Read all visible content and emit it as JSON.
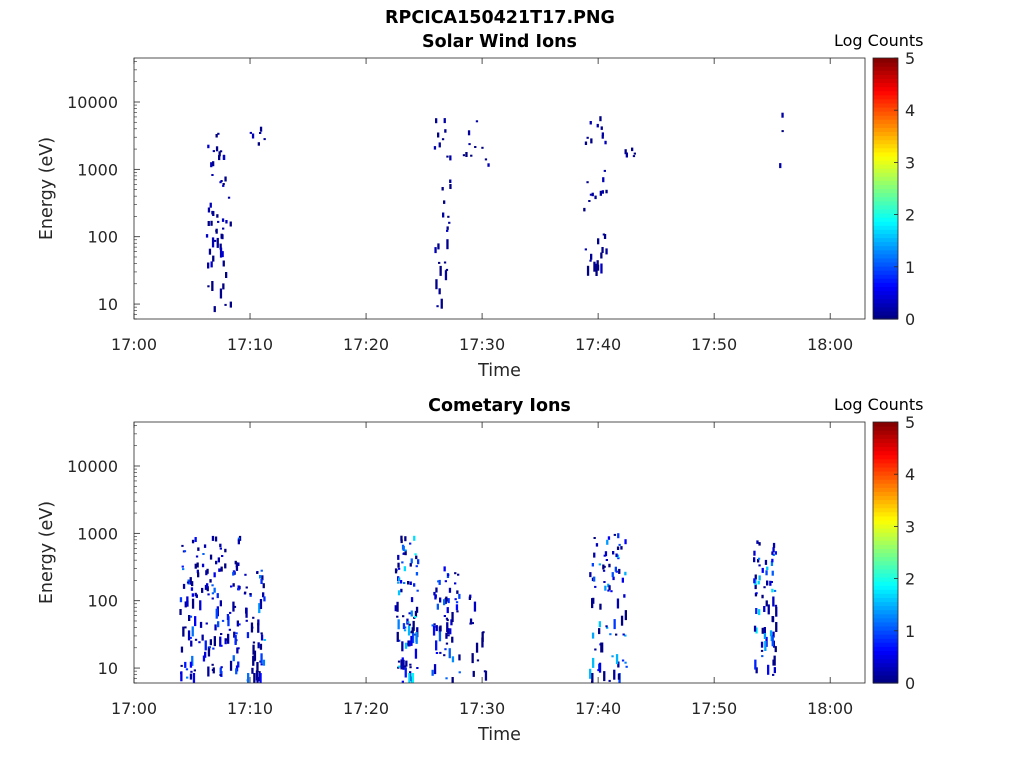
{
  "figure": {
    "title": "RPCICA150421T17.PNG"
  },
  "chart_data": [
    {
      "type": "heatmap",
      "title": "Solar Wind Ions",
      "xlabel": "Time",
      "ylabel": "Energy (eV)",
      "x_ticks": [
        "17:00",
        "17:10",
        "17:20",
        "17:30",
        "17:40",
        "17:50",
        "18:00"
      ],
      "x_range_minutes": [
        0,
        63
      ],
      "y_ticks": [
        "10",
        "100",
        "1000",
        "10000"
      ],
      "y_range": [
        6,
        45000
      ],
      "y_scale": "log",
      "colorbar": {
        "label": "Log Counts",
        "ticks": [
          "0",
          "1",
          "2",
          "3",
          "4",
          "5"
        ],
        "range": [
          0,
          5
        ],
        "colormap": "jet"
      },
      "clusters": [
        {
          "t_center": 7.2,
          "t_spread": 1.1,
          "e_min": 8,
          "e_max": 4500,
          "count": 55,
          "max_log": 0.4
        },
        {
          "t_center": 10.5,
          "t_spread": 0.8,
          "e_min": 1000,
          "e_max": 4000,
          "count": 6,
          "max_log": 0.3
        },
        {
          "t_center": 26.5,
          "t_spread": 0.7,
          "e_min": 7,
          "e_max": 6000,
          "count": 30,
          "max_log": 0.3
        },
        {
          "t_center": 29.5,
          "t_spread": 1.2,
          "e_min": 1000,
          "e_max": 6000,
          "count": 10,
          "max_log": 0.3
        },
        {
          "t_center": 39.7,
          "t_spread": 1.0,
          "e_min": 30,
          "e_max": 8500,
          "count": 38,
          "max_log": 0.3
        },
        {
          "t_center": 42.7,
          "t_spread": 0.7,
          "e_min": 1200,
          "e_max": 4000,
          "count": 5,
          "max_log": 0.3
        },
        {
          "t_center": 55.8,
          "t_spread": 0.6,
          "e_min": 900,
          "e_max": 6500,
          "count": 3,
          "max_log": 0.3
        }
      ]
    },
    {
      "type": "heatmap",
      "title": "Cometary Ions",
      "xlabel": "Time",
      "ylabel": "Energy (eV)",
      "x_ticks": [
        "17:00",
        "17:10",
        "17:20",
        "17:30",
        "17:40",
        "17:50",
        "18:00"
      ],
      "x_range_minutes": [
        0,
        63
      ],
      "y_ticks": [
        "10",
        "100",
        "1000",
        "10000"
      ],
      "y_range": [
        6,
        45000
      ],
      "y_scale": "log",
      "colorbar": {
        "label": "Log Counts",
        "ticks": [
          "0",
          "1",
          "2",
          "3",
          "4",
          "5"
        ],
        "range": [
          0,
          5
        ],
        "colormap": "jet"
      },
      "clusters": [
        {
          "t_center": 6.5,
          "t_spread": 2.6,
          "e_min": 6,
          "e_max": 1000,
          "count": 150,
          "max_log": 1.3
        },
        {
          "t_center": 10.3,
          "t_spread": 0.9,
          "e_min": 6,
          "e_max": 300,
          "count": 50,
          "max_log": 1.6
        },
        {
          "t_center": 23.4,
          "t_spread": 1.0,
          "e_min": 6,
          "e_max": 1000,
          "count": 90,
          "max_log": 1.9
        },
        {
          "t_center": 26.8,
          "t_spread": 1.2,
          "e_min": 6,
          "e_max": 300,
          "count": 60,
          "max_log": 1.5
        },
        {
          "t_center": 29.5,
          "t_spread": 0.8,
          "e_min": 6,
          "e_max": 180,
          "count": 15,
          "max_log": 0.5
        },
        {
          "t_center": 40.8,
          "t_spread": 1.6,
          "e_min": 6,
          "e_max": 950,
          "count": 80,
          "max_log": 1.6
        },
        {
          "t_center": 54.3,
          "t_spread": 1.0,
          "e_min": 6,
          "e_max": 800,
          "count": 70,
          "max_log": 1.8
        }
      ]
    }
  ]
}
